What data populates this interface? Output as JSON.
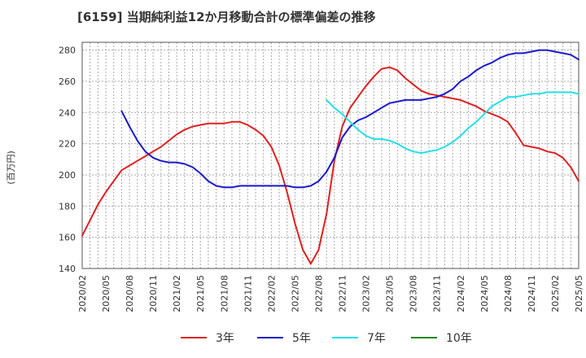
{
  "chart_data": {
    "type": "line",
    "title": "[6159]  当期純利益12か月移動合計の標準偏差の推移",
    "ylabel": "(百万円)",
    "xlabel": "",
    "ylim": [
      140,
      285
    ],
    "y_ticks": [
      140,
      160,
      180,
      200,
      220,
      240,
      260,
      280
    ],
    "x_ticks": [
      "2020/02",
      "2020/05",
      "2020/08",
      "2020/11",
      "2021/02",
      "2021/05",
      "2021/08",
      "2021/11",
      "2022/02",
      "2022/05",
      "2022/08",
      "2022/11",
      "2023/02",
      "2023/05",
      "2023/08",
      "2023/11",
      "2024/02",
      "2024/05",
      "2024/08",
      "2024/11",
      "2025/02",
      "2025/05"
    ],
    "grid": true,
    "legend_position": "bottom",
    "series": [
      {
        "name": "3年",
        "color": "#e02020",
        "start": "2020/02",
        "values": [
          161,
          171,
          181,
          189,
          196,
          203,
          206,
          209,
          212,
          215,
          218,
          222,
          226,
          229,
          231,
          232,
          233,
          233,
          233,
          234,
          234,
          232,
          229,
          225,
          218,
          206,
          189,
          169,
          152,
          143,
          152,
          175,
          209,
          231,
          243,
          250,
          257,
          263,
          268,
          269,
          267,
          262,
          258,
          254,
          252,
          251,
          250,
          249,
          248,
          246,
          244,
          241,
          239,
          237,
          234,
          227,
          219,
          218,
          217,
          215,
          214,
          211,
          205,
          196
        ]
      },
      {
        "name": "5年",
        "color": "#1a1acc",
        "start": "2020/02",
        "values": [
          null,
          null,
          null,
          null,
          null,
          241,
          231,
          222,
          215,
          211,
          209,
          208,
          208,
          207,
          205,
          201,
          196,
          193,
          192,
          192,
          193,
          193,
          193,
          193,
          193,
          193,
          193,
          192,
          192,
          193,
          196,
          202,
          211,
          224,
          231,
          235,
          237,
          240,
          243,
          246,
          247,
          248,
          248,
          248,
          249,
          250,
          252,
          255,
          260,
          263,
          267,
          270,
          272,
          275,
          277,
          278,
          278,
          279,
          280,
          280,
          279,
          278,
          277,
          274
        ]
      },
      {
        "name": "7年",
        "color": "#22e0e8",
        "start": "2020/02",
        "values": [
          null,
          null,
          null,
          null,
          null,
          null,
          null,
          null,
          null,
          null,
          null,
          null,
          null,
          null,
          null,
          null,
          null,
          null,
          null,
          null,
          null,
          null,
          null,
          null,
          null,
          null,
          null,
          null,
          null,
          null,
          null,
          248,
          243,
          239,
          234,
          229,
          225,
          223,
          223,
          222,
          220,
          217,
          215,
          214,
          215,
          216,
          218,
          221,
          225,
          230,
          234,
          239,
          244,
          247,
          250,
          250,
          251,
          252,
          252,
          253,
          253,
          253,
          253,
          252
        ]
      },
      {
        "name": "10年",
        "color": "#228822",
        "start": "2020/02",
        "values": []
      }
    ]
  }
}
